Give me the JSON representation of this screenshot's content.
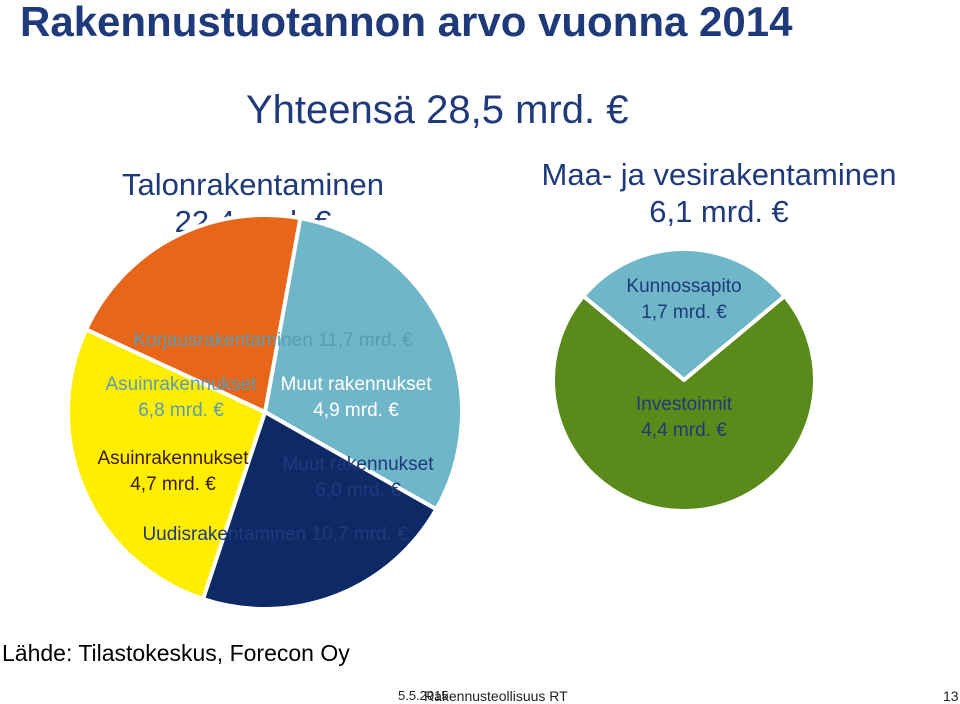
{
  "title": "Rakennustuotannon arvo vuonna 2014",
  "total": "Yhteensä 28,5 mrd. €",
  "talonrakentaminen": {
    "line1": "Talonrakentaminen",
    "line2": "22,4 mrd. €"
  },
  "maa_ja_vesi": {
    "line1": "Maa- ja vesirakentaminen",
    "line2": "6,1 mrd. €"
  },
  "source": "Lähde: Tilastokeskus, Forecon Oy",
  "footer": {
    "date": "5.5.2015",
    "org": "Rakennusteollisuus RT",
    "page": "13"
  },
  "colors": {
    "korjaus_asuin": "#6fb6c9",
    "korjaus_muut": "#0d2a66",
    "uudis_asuin": "#e8661a",
    "uudis_muut": "#ffee00",
    "kunnossapito": "#6fb6c9",
    "investoinnit": "#5a8a1a",
    "heading": "#1f3a7a"
  },
  "chart_data": [
    {
      "type": "pie",
      "name": "Talonrakentaminen",
      "total": 22.4,
      "unit": "mrd. €",
      "groups": [
        {
          "label": "Korjausrakentaminen 11,7 mrd. €",
          "value": 11.7
        },
        {
          "label": "Uudisrakentaminen 10,7 mrd. €",
          "value": 10.7
        }
      ],
      "slices": [
        {
          "label": "Asuinrakennukset",
          "value": 6.8,
          "value_label": "6,8 mrd. €",
          "group": "Korjausrakentaminen"
        },
        {
          "label": "Muut rakennukset",
          "value": 4.9,
          "value_label": "4,9 mrd. €",
          "group": "Korjausrakentaminen"
        },
        {
          "label": "Muut rakennukset",
          "value": 6.0,
          "value_label": "6,0 mrd. €",
          "group": "Uudisrakentaminen"
        },
        {
          "label": "Asuinrakennukset",
          "value": 4.7,
          "value_label": "4,7 mrd. €",
          "group": "Uudisrakentaminen"
        }
      ]
    },
    {
      "type": "pie",
      "name": "Maa- ja vesirakentaminen",
      "total": 6.1,
      "unit": "mrd. €",
      "slices": [
        {
          "label": "Kunnossapito",
          "value": 1.7,
          "value_label": "1,7 mrd. €"
        },
        {
          "label": "Investoinnit",
          "value": 4.4,
          "value_label": "4,4 mrd. €"
        }
      ]
    }
  ]
}
